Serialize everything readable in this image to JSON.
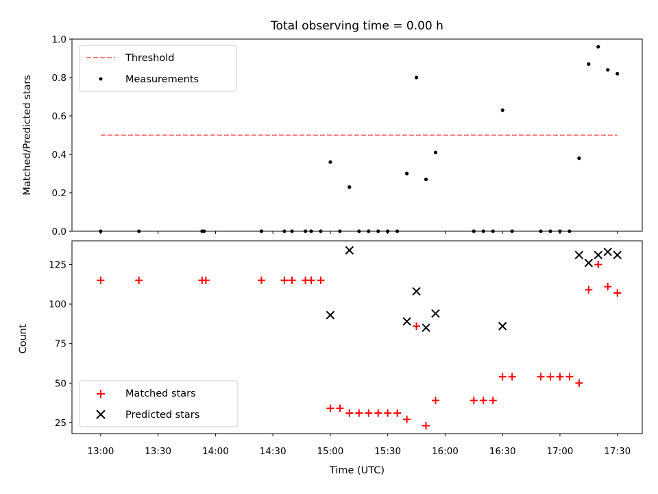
{
  "chart_data": [
    {
      "type": "scatter",
      "title": "Total observing time = 0.00 h",
      "ylabel": "Matched/Predicted stars",
      "xlabel": "",
      "ylim": [
        0.0,
        1.0
      ],
      "yticks": [
        "0.0",
        "0.2",
        "0.4",
        "0.6",
        "0.8",
        "1.0"
      ],
      "grid": false,
      "legend_position": "top-left",
      "legend": [
        "Threshold",
        "Measurements"
      ],
      "threshold": {
        "name": "Threshold",
        "value": 0.5,
        "x_range": [
          "13:00",
          "17:30"
        ],
        "color": "#ff7f7f",
        "style": "dashed"
      },
      "series": [
        {
          "name": "Measurements",
          "color": "#000000",
          "marker": "dot",
          "points": [
            [
              "13:00",
              0.0
            ],
            [
              "13:20",
              0.0
            ],
            [
              "13:53",
              0.0
            ],
            [
              "13:54",
              0.0
            ],
            [
              "14:24",
              0.0
            ],
            [
              "14:36",
              0.0
            ],
            [
              "14:40",
              0.0
            ],
            [
              "14:47",
              0.0
            ],
            [
              "14:50",
              0.0
            ],
            [
              "14:55",
              0.0
            ],
            [
              "15:00",
              0.36
            ],
            [
              "15:05",
              0.0
            ],
            [
              "15:10",
              0.23
            ],
            [
              "15:15",
              0.0
            ],
            [
              "15:20",
              0.0
            ],
            [
              "15:25",
              0.0
            ],
            [
              "15:30",
              0.0
            ],
            [
              "15:35",
              0.0
            ],
            [
              "15:40",
              0.3
            ],
            [
              "15:45",
              0.8
            ],
            [
              "15:50",
              0.27
            ],
            [
              "15:55",
              0.41
            ],
            [
              "16:15",
              0.0
            ],
            [
              "16:20",
              0.0
            ],
            [
              "16:25",
              0.0
            ],
            [
              "16:30",
              0.63
            ],
            [
              "16:35",
              0.0
            ],
            [
              "16:50",
              0.0
            ],
            [
              "16:55",
              0.0
            ],
            [
              "17:00",
              0.0
            ],
            [
              "17:05",
              0.0
            ],
            [
              "17:10",
              0.38
            ],
            [
              "17:15",
              0.87
            ],
            [
              "17:20",
              0.96
            ],
            [
              "17:25",
              0.84
            ],
            [
              "17:30",
              0.82
            ]
          ]
        }
      ]
    },
    {
      "type": "scatter",
      "title": "",
      "ylabel": "Count",
      "xlabel": "Time (UTC)",
      "xlim": [
        "12:45",
        "17:43"
      ],
      "ylim": [
        18,
        140
      ],
      "yticks": [
        "25",
        "50",
        "75",
        "100",
        "125"
      ],
      "xticks": [
        "13:00",
        "13:30",
        "14:00",
        "14:30",
        "15:00",
        "15:30",
        "16:00",
        "16:30",
        "17:00",
        "17:30"
      ],
      "grid": false,
      "legend_position": "bottom-left",
      "legend": [
        "Matched stars",
        "Predicted stars"
      ],
      "series": [
        {
          "name": "Matched stars",
          "color": "#ff0000",
          "marker": "plus",
          "points": [
            [
              "13:00",
              115
            ],
            [
              "13:20",
              115
            ],
            [
              "13:53",
              115
            ],
            [
              "13:55",
              115
            ],
            [
              "14:24",
              115
            ],
            [
              "14:36",
              115
            ],
            [
              "14:40",
              115
            ],
            [
              "14:47",
              115
            ],
            [
              "14:50",
              115
            ],
            [
              "14:55",
              115
            ],
            [
              "15:00",
              34
            ],
            [
              "15:05",
              34
            ],
            [
              "15:10",
              31
            ],
            [
              "15:15",
              31
            ],
            [
              "15:20",
              31
            ],
            [
              "15:25",
              31
            ],
            [
              "15:30",
              31
            ],
            [
              "15:35",
              31
            ],
            [
              "15:40",
              27
            ],
            [
              "15:45",
              86
            ],
            [
              "15:50",
              23
            ],
            [
              "15:55",
              39
            ],
            [
              "16:15",
              39
            ],
            [
              "16:20",
              39
            ],
            [
              "16:25",
              39
            ],
            [
              "16:30",
              54
            ],
            [
              "16:35",
              54
            ],
            [
              "16:50",
              54
            ],
            [
              "16:55",
              54
            ],
            [
              "17:00",
              54
            ],
            [
              "17:05",
              54
            ],
            [
              "17:10",
              50
            ],
            [
              "17:15",
              109
            ],
            [
              "17:20",
              125
            ],
            [
              "17:25",
              111
            ],
            [
              "17:30",
              107
            ]
          ]
        },
        {
          "name": "Predicted stars",
          "color": "#000000",
          "marker": "x",
          "points": [
            [
              "15:00",
              93
            ],
            [
              "15:10",
              134
            ],
            [
              "15:40",
              89
            ],
            [
              "15:45",
              108
            ],
            [
              "15:50",
              85
            ],
            [
              "15:55",
              94
            ],
            [
              "16:30",
              86
            ],
            [
              "17:10",
              131
            ],
            [
              "17:15",
              126
            ],
            [
              "17:20",
              131
            ],
            [
              "17:25",
              133
            ],
            [
              "17:30",
              131
            ]
          ]
        }
      ]
    }
  ]
}
